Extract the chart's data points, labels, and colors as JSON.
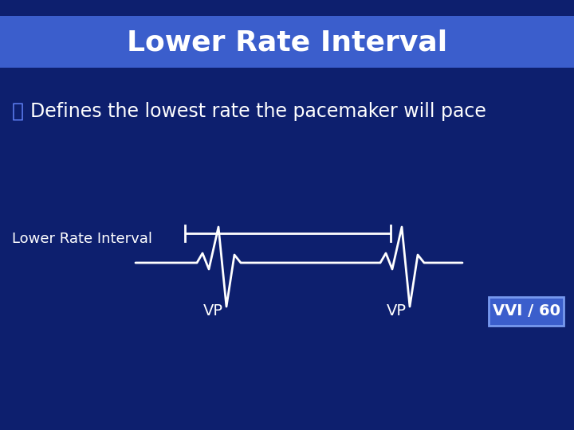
{
  "title": "Lower Rate Interval",
  "title_bg_color": "#3B5ECC",
  "bg_color": "#0D1F6E",
  "title_text_color": "#FFFFFF",
  "body_text_color": "#FFFFFF",
  "bullet_text": "Defines the lowest rate the pacemaker will pace",
  "label_lri": "Lower Rate Interval",
  "label_vp1": "VP",
  "label_vp2": "VP",
  "label_vvi": "VVI / 60",
  "vvi_box_color": "#3B5ECC",
  "vvi_edge_color": "#7799EE",
  "vvi_text_color": "#FFFFFF",
  "ecg_color": "#FFFFFF",
  "lri_bar_color": "#FFFFFF",
  "title_fontsize": 26,
  "bullet_fontsize": 17,
  "label_fontsize": 13,
  "vp_fontsize": 14,
  "vvi_fontsize": 14,
  "lri_label_fontsize": 13
}
